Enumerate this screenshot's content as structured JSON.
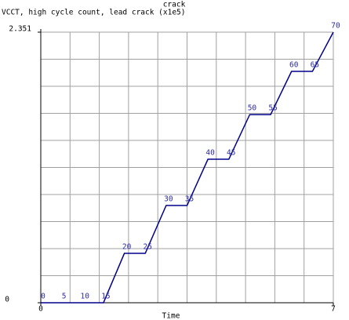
{
  "chart_data": {
    "type": "line",
    "title": "crack",
    "ylabel": "VCCT, high cycle count, lead crack (x1e5)",
    "xlabel": "Time",
    "x": [
      0,
      0.5,
      1,
      1.5,
      2,
      2.5,
      3,
      3.5,
      4,
      4.5,
      5,
      5.5,
      6,
      6.5,
      7
    ],
    "series": [
      {
        "color": "#00008b",
        "values": [
          0,
          0,
          0,
          0,
          0.429,
          0.429,
          0.845,
          0.845,
          1.247,
          1.247,
          1.635,
          1.635,
          2.01,
          2.01,
          2.351
        ],
        "point_labels": [
          0,
          5,
          10,
          15,
          20,
          25,
          30,
          35,
          40,
          45,
          50,
          55,
          60,
          65,
          70
        ]
      }
    ],
    "xlim": [
      0,
      7
    ],
    "xticks": [
      0,
      7
    ],
    "ylim": [
      0,
      2.351
    ],
    "yticks": [
      0,
      2.351
    ],
    "grid": {
      "x_divisions": 10,
      "y_divisions": 10,
      "color": "#a0a0a0"
    }
  }
}
